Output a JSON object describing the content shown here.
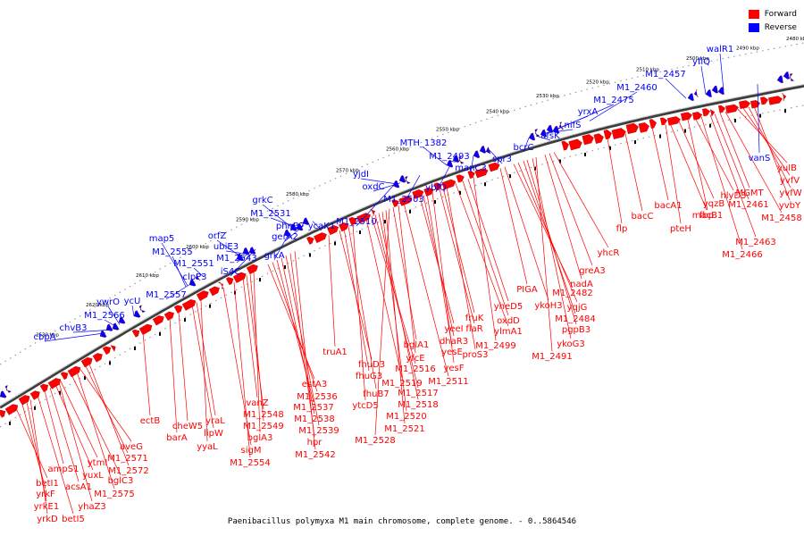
{
  "caption": "Paenibacillus polymyxa M1 main chromosome, complete genome. - 0..5864546",
  "legend": [
    {
      "label": "Forward",
      "color": "#ff0000"
    },
    {
      "label": "Reverse",
      "color": "#0000ff"
    }
  ],
  "colors": {
    "forward": "#ff0000",
    "reverse": "#0000ff",
    "backbone": "#555555"
  },
  "ticks": [
    "2630 kbp",
    "2620 kbp",
    "2610 kbp",
    "2600 kbp",
    "2590 kbp",
    "2580 kbp",
    "2570 kbp",
    "2560 kbp",
    "2550 kbp",
    "2540 kbp",
    "2530 kbp",
    "2520 kbp",
    "2510 kbp",
    "2500 kbp",
    "2490 kbp",
    "2480 kbp"
  ],
  "reverse_labels": [
    "cbpA",
    "chvB3",
    "M1_2566",
    "ywrO",
    "ycU",
    "M1_2557",
    "clpP3",
    "M1_2551",
    "M1_2555",
    "map5",
    "orfZ",
    "ubiE3",
    "M1_2543",
    "iS4C",
    "grkC",
    "M1_2531",
    "phnB7",
    "gerA2",
    "grkA",
    "ycaK1",
    "M1_2510",
    "yjdI",
    "oxdC",
    "M1_2503",
    "MTH_1382",
    "M1_2493",
    "ybfQ",
    "manC3",
    "spr3",
    "bcrC",
    "afsK",
    "nifS",
    "yrxA",
    "M1_2475",
    "M1_2460",
    "M1_2457",
    "yfiQ",
    "walR1",
    "vanS"
  ],
  "forward_labels": [
    "betI1",
    "yrkF",
    "yrkE1",
    "yrkD",
    "betI5",
    "ampS1",
    "acsA1",
    "yuxL",
    "ytmI",
    "yhaZ3",
    "bglC3",
    "M1_2575",
    "aveG",
    "M1_2571",
    "M1_2572",
    "ectB",
    "barA",
    "cheW5",
    "lipW",
    "yraL",
    "yyaL",
    "sigM",
    "M1_2554",
    "vanZ",
    "M1_2548",
    "M1_2549",
    "bglA3",
    "estA3",
    "M1_2536",
    "M1_2537",
    "M1_2538",
    "M1_2539",
    "hpr",
    "M1_2542",
    "truA1",
    "fhuD3",
    "fhuG3",
    "fhuB7",
    "ytcD5",
    "M1_2519",
    "M1_2516",
    "M1_2517",
    "M1_2518",
    "M1_2520",
    "M1_2521",
    "M1_2528",
    "bglA1",
    "yfcE",
    "M1_2511",
    "yeeI",
    "dhaR3",
    "yesE",
    "yesF",
    "flaR",
    "fruK",
    "proS3",
    "ylmA1",
    "oxdD",
    "yheD5",
    "M1_2499",
    "PIGA",
    "ykoH3",
    "M1_2482",
    "yqjG",
    "M1_2484",
    "pgpB3",
    "ykoG3",
    "M1_2491",
    "nadA",
    "greA3",
    "yhcR",
    "flp",
    "bacC",
    "bacA1",
    "pteH",
    "fbp",
    "yqzB",
    "macB1",
    "hlyD3",
    "M1_2466",
    "M1_2463",
    "M1_2461",
    "MGMT",
    "M1_2458",
    "yuIB",
    "yvfV",
    "yvfW",
    "yvbY"
  ]
}
